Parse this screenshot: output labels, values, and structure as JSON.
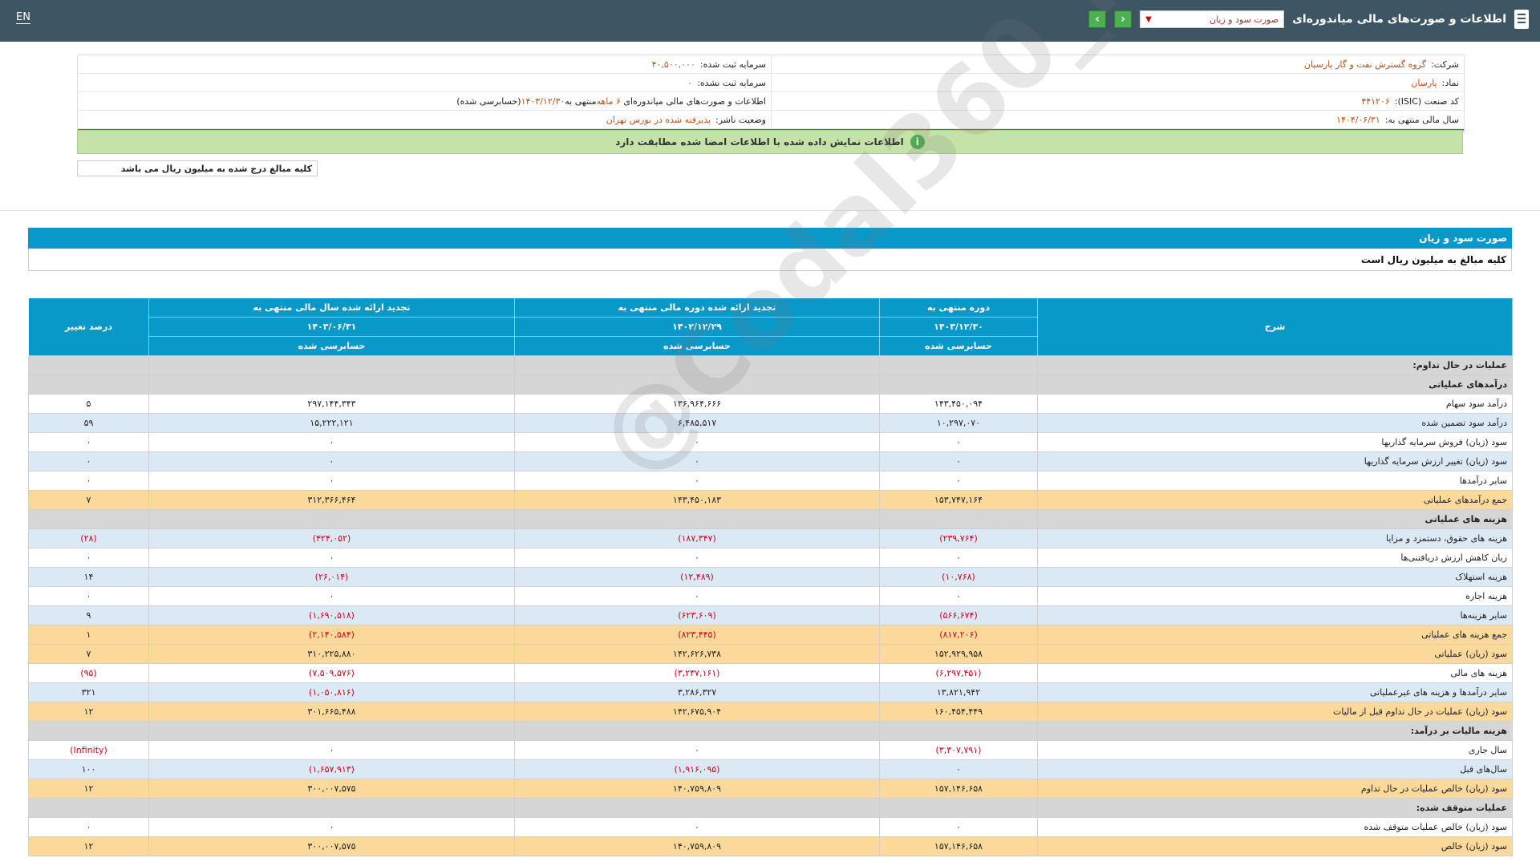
{
  "header": {
    "lang_link": "EN",
    "title": "اطلاعات و صورت‌های مالی میاندوره‌ای",
    "report_select": "صورت سود و زیان"
  },
  "info": {
    "company_label": "شرکت:",
    "company_value": "گروه گسترش نفت و گاز پارسیان",
    "capital_reg_label": "سرمایه ثبت شده:",
    "capital_reg_value": "۴۰,۵۰۰,۰۰۰",
    "symbol_label": "نماد:",
    "symbol_value": "پارسان",
    "capital_unreg_label": "سرمایه ثبت نشده:",
    "capital_unreg_value": "۰",
    "isic_label": "کد صنعت (ISIC):",
    "isic_value": "۴۴۱۲۰۶",
    "report_desc_prefix": "اطلاعات و صورت‌های مالی میاندوره‌ای",
    "report_desc_period": "۶ ماهه",
    "report_desc_suffix": "منتهی به",
    "report_desc_date": "۱۴۰۳/۱۲/۳۰",
    "report_desc_status": "(حسابرسی شده)",
    "fiscal_label": "سال مالی منتهی به:",
    "fiscal_value": "۱۴۰۴/۰۶/۳۱",
    "publisher_label": "وضعیت ناشر:",
    "publisher_value": "پذیرفته شده در بورس تهران"
  },
  "banner_text": "اطلاعات نمایش داده شده با اطلاعات امضا شده مطابقت دارد",
  "units_note": "کلیه مبالغ درج شده به میلیون ریال می باشد",
  "section": {
    "title": "صورت سود و زیان",
    "subtitle": "کلیه مبالغ به میلیون ریال است"
  },
  "watermark": "@Codal360_ir",
  "table": {
    "headers": {
      "desc": "شرح",
      "col1": "دوره منتهی به",
      "col2": "تجدید ارائه شده دوره مالی منتهی به",
      "col3": "تجدید ارائه شده سال مالی منتهی به",
      "col4": "درصد تغییر",
      "date1": "۱۴۰۳/۱۲/۳۰",
      "date2": "۱۴۰۲/۱۲/۲۹",
      "date3": "۱۴۰۳/۰۶/۳۱",
      "status1": "حسابرسی شده",
      "status2": "حسابرسی شده",
      "status3": "حسابرسی شده"
    },
    "rows": [
      {
        "type": "section",
        "desc": "عملیات در حال تداوم:",
        "c1": "",
        "c2": "",
        "c3": "",
        "c4": ""
      },
      {
        "type": "section",
        "desc": "درآمدهای عملیاتی",
        "c1": "",
        "c2": "",
        "c3": "",
        "c4": ""
      },
      {
        "type": "white",
        "desc": "درآمد سود سهام",
        "c1": "۱۴۳,۴۵۰,۰۹۴",
        "c2": "۱۳۶,۹۶۴,۶۶۶",
        "c3": "۲۹۷,۱۴۴,۳۴۳",
        "c4": "۵"
      },
      {
        "type": "blue",
        "desc": "درآمد سود تضمین شده",
        "c1": "۱۰,۲۹۷,۰۷۰",
        "c2": "۶,۴۸۵,۵۱۷",
        "c3": "۱۵,۲۲۲,۱۲۱",
        "c4": "۵۹"
      },
      {
        "type": "white",
        "desc": "سود (زیان) فروش سرمایه گذاریها",
        "c1": "۰",
        "c2": "۰",
        "c3": "۰",
        "c4": "۰"
      },
      {
        "type": "blue",
        "desc": "سود (زیان) تغییر ارزش سرمایه گذاریها",
        "c1": "۰",
        "c2": "۰",
        "c3": "۰",
        "c4": "۰"
      },
      {
        "type": "white",
        "desc": "سایر درآمدها",
        "c1": "۰",
        "c2": "۰",
        "c3": "۰",
        "c4": "۰"
      },
      {
        "type": "total",
        "desc": "جمع درآمدهای عملیاتی",
        "c1": "۱۵۳,۷۴۷,۱۶۴",
        "c2": "۱۴۳,۴۵۰,۱۸۳",
        "c3": "۳۱۲,۳۶۶,۴۶۴",
        "c4": "۷"
      },
      {
        "type": "section",
        "desc": "هزینه های عملیاتی",
        "c1": "",
        "c2": "",
        "c3": "",
        "c4": ""
      },
      {
        "type": "blue",
        "desc": "هزینه های حقوق، دستمزد و مزایا",
        "c1": "(۲۳۹,۷۶۴)",
        "c2": "(۱۸۷,۳۴۷)",
        "c3": "(۴۲۴,۰۵۲)",
        "c4": "(۲۸)"
      },
      {
        "type": "white",
        "desc": "زیان کاهش ارزش دریافتنی‌ها",
        "c1": "۰",
        "c2": "۰",
        "c3": "۰",
        "c4": "۰"
      },
      {
        "type": "blue",
        "desc": "هزینه استهلاک",
        "c1": "(۱۰,۷۶۸)",
        "c2": "(۱۲,۴۸۹)",
        "c3": "(۲۶,۰۱۴)",
        "c4": "۱۴"
      },
      {
        "type": "white",
        "desc": "هزینه اجاره",
        "c1": "۰",
        "c2": "۰",
        "c3": "۰",
        "c4": "۰"
      },
      {
        "type": "blue",
        "desc": "سایر هزینه‌ها",
        "c1": "(۵۶۶,۶۷۴)",
        "c2": "(۶۲۳,۶۰۹)",
        "c3": "(۱,۶۹۰,۵۱۸)",
        "c4": "۹"
      },
      {
        "type": "total",
        "desc": "جمع هزینه های عملیاتی",
        "c1": "(۸۱۷,۲۰۶)",
        "c2": "(۸۲۳,۴۴۵)",
        "c3": "(۲,۱۴۰,۵۸۴)",
        "c4": "۱"
      },
      {
        "type": "total",
        "desc": "سود (زیان) عملیاتی",
        "c1": "۱۵۲,۹۲۹,۹۵۸",
        "c2": "۱۴۲,۶۲۶,۷۳۸",
        "c3": "۳۱۰,۲۲۵,۸۸۰",
        "c4": "۷"
      },
      {
        "type": "white",
        "desc": "هزینه های مالی",
        "c1": "(۶,۲۹۷,۴۵۱)",
        "c2": "(۳,۲۳۷,۱۶۱)",
        "c3": "(۷,۵۰۹,۵۷۶)",
        "c4": "(۹۵)"
      },
      {
        "type": "blue",
        "desc": "سایر درآمدها و هزینه های غیرعملیاتی",
        "c1": "۱۳,۸۲۱,۹۴۲",
        "c2": "۳,۲۸۶,۳۲۷",
        "c3": "(۱,۰۵۰,۸۱۶)",
        "c4": "۳۲۱"
      },
      {
        "type": "total",
        "desc": "سود (زیان) عملیات در حال تداوم قبل از مالیات",
        "c1": "۱۶۰,۴۵۴,۴۴۹",
        "c2": "۱۴۲,۶۷۵,۹۰۴",
        "c3": "۳۰۱,۶۶۵,۴۸۸",
        "c4": "۱۲"
      },
      {
        "type": "section",
        "desc": "هزینه مالیات بر درآمد:",
        "c1": "",
        "c2": "",
        "c3": "",
        "c4": ""
      },
      {
        "type": "white",
        "desc": "سال جاری",
        "c1": "(۳,۳۰۷,۷۹۱)",
        "c2": "۰",
        "c3": "۰",
        "c4": "(Infinity)"
      },
      {
        "type": "blue",
        "desc": "سال‌های قبل",
        "c1": "۰",
        "c2": "(۱,۹۱۶,۰۹۵)",
        "c3": "(۱,۶۵۷,۹۱۳)",
        "c4": "۱۰۰"
      },
      {
        "type": "total",
        "desc": "سود (زیان) خالص عملیات در حال تداوم",
        "c1": "۱۵۷,۱۴۶,۶۵۸",
        "c2": "۱۴۰,۷۵۹,۸۰۹",
        "c3": "۳۰۰,۰۰۷,۵۷۵",
        "c4": "۱۲"
      },
      {
        "type": "section",
        "desc": "عملیات متوقف شده:",
        "c1": "",
        "c2": "",
        "c3": "",
        "c4": ""
      },
      {
        "type": "white",
        "desc": "سود (زیان) خالص عملیات متوقف شده",
        "c1": "۰",
        "c2": "۰",
        "c3": "۰",
        "c4": "۰"
      },
      {
        "type": "total",
        "desc": "سود (زیان) خالص",
        "c1": "۱۵۷,۱۴۶,۶۵۸",
        "c2": "۱۴۰,۷۵۹,۸۰۹",
        "c3": "۳۰۰,۰۰۷,۵۷۵",
        "c4": "۱۲"
      }
    ]
  }
}
